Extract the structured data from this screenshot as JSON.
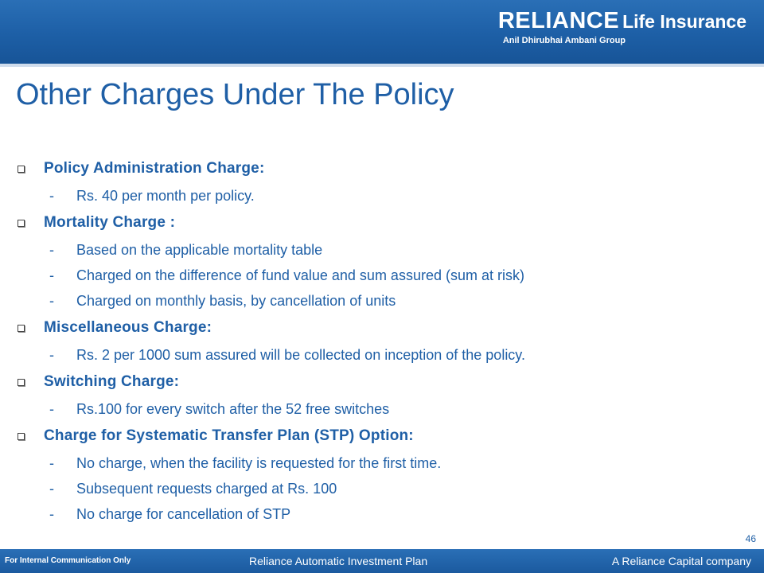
{
  "header": {
    "logo_brand": "RELIANCE",
    "logo_rest": "Life Insurance",
    "logo_sub": "Anil Dhirubhai Ambani Group"
  },
  "slide": {
    "title": "Other Charges Under The Policy",
    "sections": [
      {
        "label": "Policy Administration Charge:",
        "items": [
          "Rs. 40 per month per policy."
        ]
      },
      {
        "label": "Mortality Charge :",
        "items": [
          "Based on the applicable mortality table",
          "Charged on the difference of fund value and sum assured (sum at risk)",
          "Charged on monthly basis, by cancellation of units"
        ]
      },
      {
        "label": "Miscellaneous Charge:",
        "items": [
          "Rs. 2 per 1000 sum assured will be collected on inception of the policy."
        ]
      },
      {
        "label": "Switching Charge:",
        "items": [
          "Rs.100 for every switch after the 52 free switches"
        ]
      },
      {
        "label": "Charge for Systematic Transfer Plan (STP) Option:",
        "items": [
          "No charge, when the facility is requested for the first time.",
          "Subsequent requests charged at Rs. 100",
          "No charge for cancellation of STP"
        ]
      }
    ],
    "dash": "-",
    "page_number": "46"
  },
  "footer": {
    "left": "For Internal Communication Only",
    "center": "Reliance Automatic Investment Plan",
    "right": "A Reliance Capital company"
  },
  "colors": {
    "header_blue": "#1d5fa6",
    "text_blue": "#1f5fa6"
  }
}
